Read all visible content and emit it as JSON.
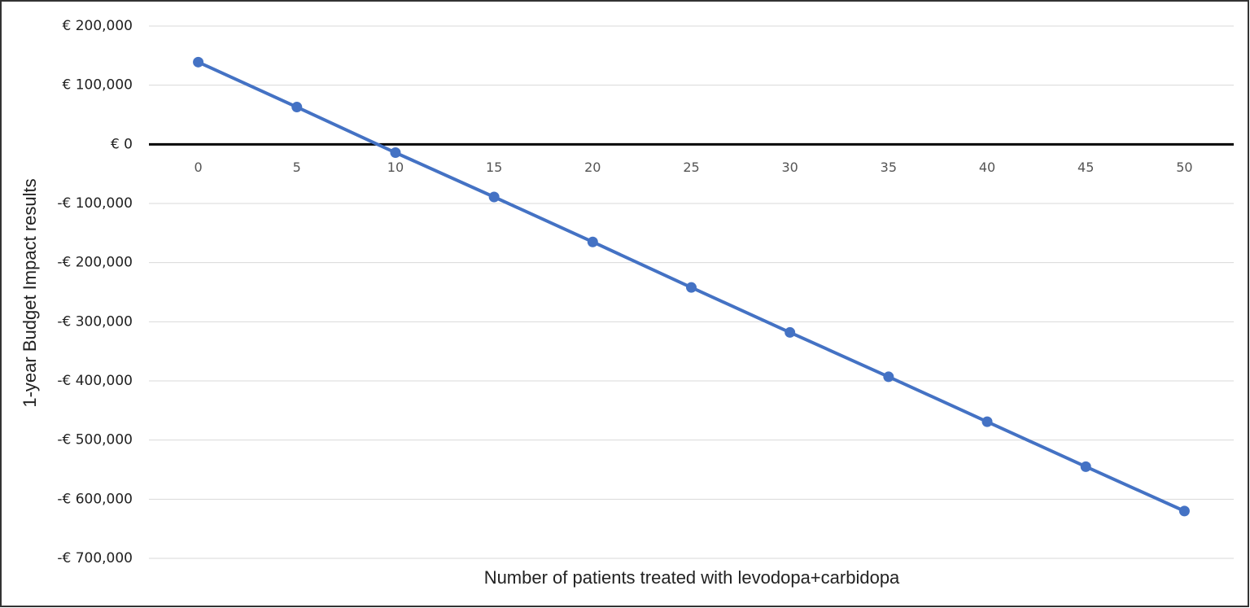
{
  "chart_data": {
    "type": "line",
    "y_label": "1-year Budget Impact results",
    "x_label": "Number of patients treated with levodopa+carbidopa",
    "x": [
      0,
      5,
      10,
      15,
      20,
      25,
      30,
      35,
      40,
      45,
      50
    ],
    "series": [
      {
        "color": "#4472c4",
        "values": [
          139000,
          63000,
          -14000,
          -89000,
          -165000,
          -242000,
          -318000,
          -393000,
          -469000,
          -545000,
          -620000
        ]
      }
    ],
    "xlim": [
      -2.5,
      52.5
    ],
    "xticks": [
      0,
      5,
      10,
      15,
      20,
      25,
      30,
      35,
      40,
      45,
      50
    ],
    "ylim": [
      -700000,
      200000
    ],
    "yticks": [
      {
        "value": 200000,
        "label": "€ 200,000"
      },
      {
        "value": 100000,
        "label": "€ 100,000"
      },
      {
        "value": 0,
        "label": "€ 0"
      },
      {
        "value": -100000,
        "label": "-€ 100,000"
      },
      {
        "value": -200000,
        "label": "-€ 200,000"
      },
      {
        "value": -300000,
        "label": "-€ 300,000"
      },
      {
        "value": -400000,
        "label": "-€ 400,000"
      },
      {
        "value": -500000,
        "label": "-€ 500,000"
      },
      {
        "value": -600000,
        "label": "-€ 600,000"
      },
      {
        "value": -700000,
        "label": "-€ 700,000"
      }
    ],
    "grid": true
  }
}
